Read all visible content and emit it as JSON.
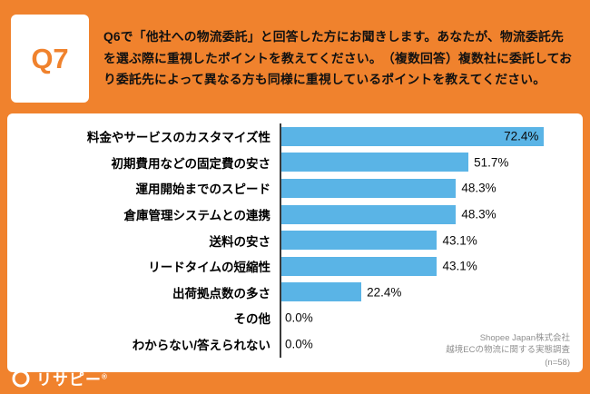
{
  "page": {
    "bg_color": "#F0822D",
    "panel_color": "#FFFFFF"
  },
  "header": {
    "q_label": "Q7",
    "q_label_color": "#F0822D",
    "question": "Q6で「他社への物流委託」と回答した方にお聞きします。あなたが、物流委託先を選ぶ際に重視したポイントを教えてください。　（複数回答）複数社に委託しており委託先によって異なる方も同様に重視しているポイントを教えてください。"
  },
  "chart_data": {
    "type": "bar",
    "orientation": "horizontal",
    "title": "",
    "categories": [
      "料金やサービスのカスタマイズ性",
      "初期費用などの固定費の安さ",
      "運用開始までのスピード",
      "倉庫管理システムとの連携",
      "送料の安さ",
      "リードタイムの短縮性",
      "出荷拠点数の多さ",
      "その他",
      "わからない/答えられない"
    ],
    "values": [
      72.4,
      51.7,
      48.3,
      48.3,
      43.1,
      43.1,
      22.4,
      0.0,
      0.0
    ],
    "value_labels": [
      "72.4%",
      "51.7%",
      "48.3%",
      "48.3%",
      "43.1%",
      "43.1%",
      "22.4%",
      "0.0%",
      "0.0%"
    ],
    "xlim": [
      0,
      80
    ],
    "grid": false,
    "legend": false,
    "bar_color": "#5AB4E6",
    "source_lines": [
      "Shopee Japan株式会社",
      "越境ECの物流に関する実態調査",
      "(n=58)"
    ]
  },
  "footer": {
    "logo_text": "リサピー",
    "logo_mark": "®"
  }
}
